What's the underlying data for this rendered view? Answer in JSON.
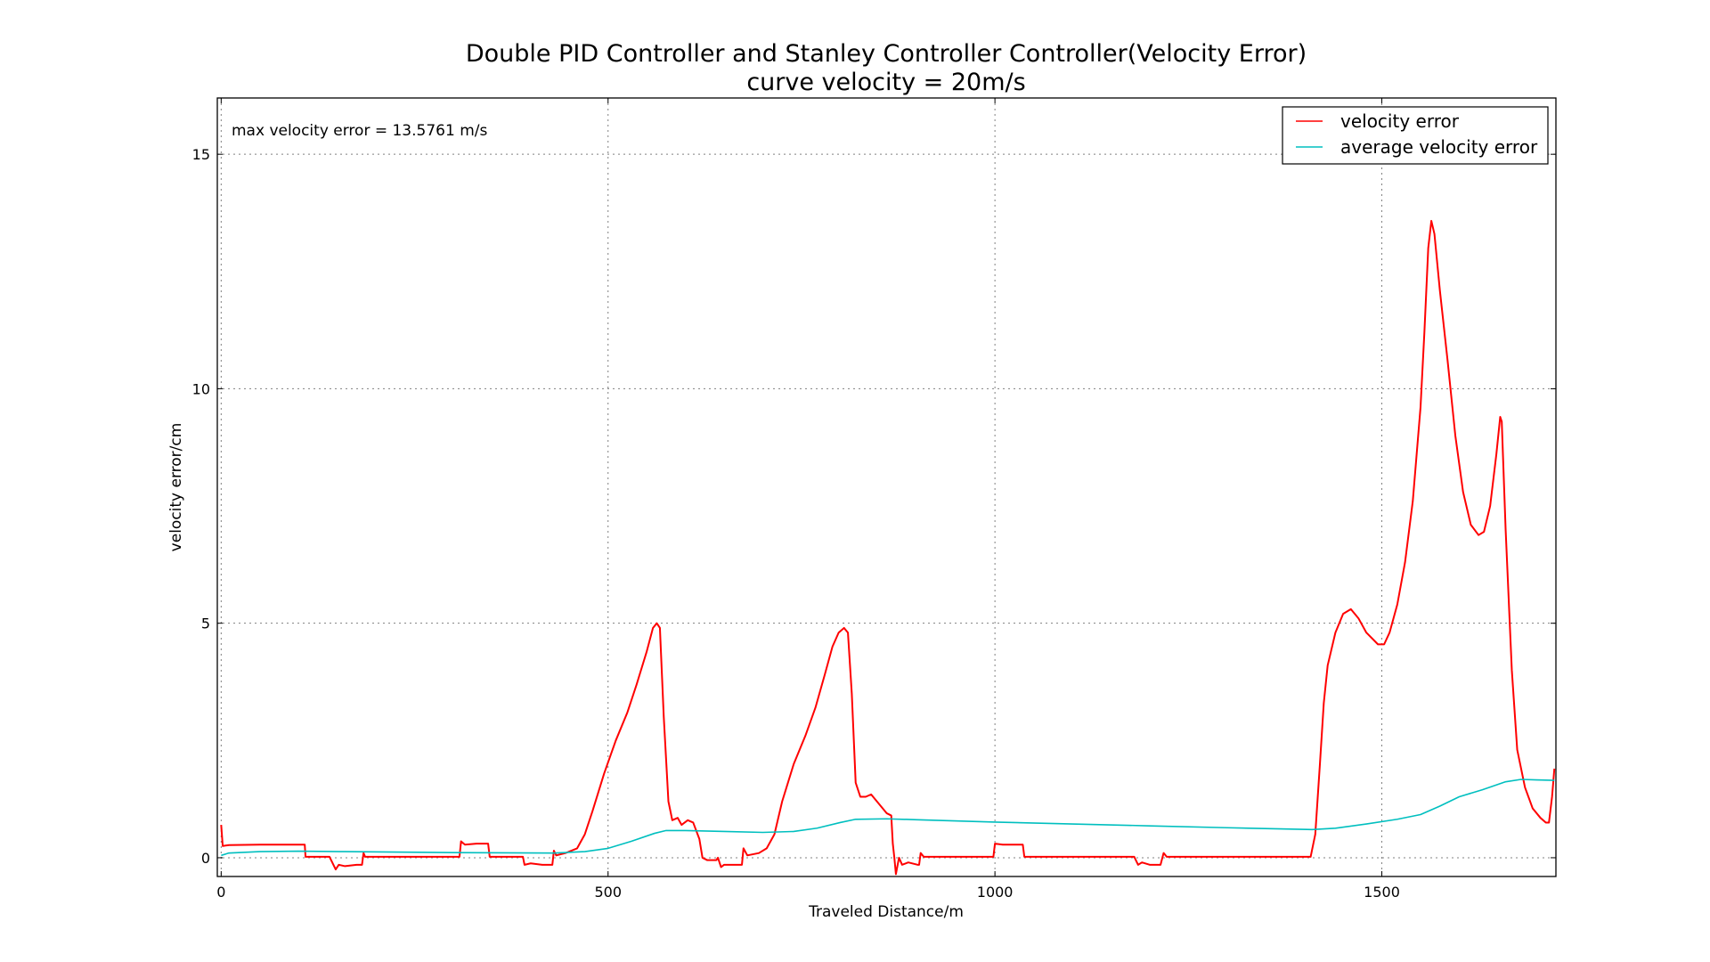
{
  "chart_data": {
    "type": "line",
    "title": "Double PID Controller and Stanley Controller Controller(Velocity Error)",
    "subtitle": "curve velocity = 20m/s",
    "xlabel": "Traveled Distance/m",
    "ylabel": "velocity error/cm",
    "xlim": [
      -5,
      1725
    ],
    "ylim": [
      -0.4,
      16.2
    ],
    "xticks": [
      0,
      500,
      1000,
      1500
    ],
    "yticks": [
      0,
      5,
      10,
      15
    ],
    "grid": true,
    "legend_position": "upper right",
    "annotation": "max velocity error = 13.5761 m/s",
    "series": [
      {
        "name": "velocity error",
        "color": "#ff0000",
        "points": [
          [
            0,
            0.7
          ],
          [
            2,
            0.25
          ],
          [
            10,
            0.27
          ],
          [
            50,
            0.28
          ],
          [
            100,
            0.28
          ],
          [
            108,
            0.28
          ],
          [
            109,
            0.02
          ],
          [
            140,
            0.02
          ],
          [
            148,
            -0.25
          ],
          [
            152,
            -0.15
          ],
          [
            160,
            -0.18
          ],
          [
            175,
            -0.15
          ],
          [
            182,
            -0.15
          ],
          [
            184,
            0.1
          ],
          [
            186,
            0.02
          ],
          [
            220,
            0.02
          ],
          [
            260,
            0.02
          ],
          [
            308,
            0.02
          ],
          [
            310,
            0.35
          ],
          [
            315,
            0.28
          ],
          [
            330,
            0.3
          ],
          [
            345,
            0.3
          ],
          [
            347,
            0.02
          ],
          [
            370,
            0.02
          ],
          [
            390,
            0.02
          ],
          [
            392,
            -0.15
          ],
          [
            400,
            -0.12
          ],
          [
            415,
            -0.15
          ],
          [
            428,
            -0.15
          ],
          [
            430,
            0.15
          ],
          [
            433,
            0.05
          ],
          [
            445,
            0.1
          ],
          [
            460,
            0.2
          ],
          [
            470,
            0.5
          ],
          [
            480,
            1.0
          ],
          [
            495,
            1.8
          ],
          [
            510,
            2.5
          ],
          [
            525,
            3.1
          ],
          [
            537,
            3.7
          ],
          [
            550,
            4.4
          ],
          [
            558,
            4.9
          ],
          [
            563,
            5.0
          ],
          [
            567,
            4.9
          ],
          [
            572,
            3.0
          ],
          [
            578,
            1.2
          ],
          [
            583,
            0.8
          ],
          [
            590,
            0.85
          ],
          [
            595,
            0.7
          ],
          [
            603,
            0.8
          ],
          [
            610,
            0.75
          ],
          [
            618,
            0.4
          ],
          [
            622,
            0.0
          ],
          [
            628,
            -0.05
          ],
          [
            640,
            -0.05
          ],
          [
            642,
            0.0
          ],
          [
            646,
            -0.2
          ],
          [
            650,
            -0.15
          ],
          [
            665,
            -0.15
          ],
          [
            673,
            -0.15
          ],
          [
            675,
            0.2
          ],
          [
            680,
            0.05
          ],
          [
            695,
            0.1
          ],
          [
            705,
            0.2
          ],
          [
            715,
            0.5
          ],
          [
            725,
            1.2
          ],
          [
            740,
            2.0
          ],
          [
            755,
            2.6
          ],
          [
            768,
            3.2
          ],
          [
            780,
            3.9
          ],
          [
            790,
            4.5
          ],
          [
            798,
            4.8
          ],
          [
            805,
            4.9
          ],
          [
            810,
            4.8
          ],
          [
            815,
            3.5
          ],
          [
            820,
            1.6
          ],
          [
            826,
            1.3
          ],
          [
            833,
            1.3
          ],
          [
            840,
            1.35
          ],
          [
            850,
            1.15
          ],
          [
            860,
            0.95
          ],
          [
            866,
            0.9
          ],
          [
            868,
            0.3
          ],
          [
            870,
            0.0
          ],
          [
            872,
            -0.35
          ],
          [
            876,
            0.0
          ],
          [
            880,
            -0.15
          ],
          [
            888,
            -0.1
          ],
          [
            900,
            -0.15
          ],
          [
            902,
            -0.15
          ],
          [
            904,
            0.1
          ],
          [
            908,
            0.02
          ],
          [
            950,
            0.02
          ],
          [
            998,
            0.02
          ],
          [
            1000,
            0.3
          ],
          [
            1010,
            0.28
          ],
          [
            1036,
            0.28
          ],
          [
            1038,
            0.02
          ],
          [
            1100,
            0.02
          ],
          [
            1180,
            0.02
          ],
          [
            1185,
            -0.15
          ],
          [
            1190,
            -0.1
          ],
          [
            1200,
            -0.15
          ],
          [
            1214,
            -0.15
          ],
          [
            1218,
            0.1
          ],
          [
            1222,
            0.02
          ],
          [
            1300,
            0.02
          ],
          [
            1400,
            0.02
          ],
          [
            1408,
            0.02
          ],
          [
            1414,
            0.5
          ],
          [
            1420,
            2.0
          ],
          [
            1425,
            3.3
          ],
          [
            1430,
            4.1
          ],
          [
            1440,
            4.8
          ],
          [
            1450,
            5.2
          ],
          [
            1460,
            5.3
          ],
          [
            1470,
            5.1
          ],
          [
            1480,
            4.8
          ],
          [
            1495,
            4.55
          ],
          [
            1503,
            4.55
          ],
          [
            1510,
            4.8
          ],
          [
            1520,
            5.4
          ],
          [
            1530,
            6.3
          ],
          [
            1540,
            7.6
          ],
          [
            1550,
            9.6
          ],
          [
            1555,
            11.2
          ],
          [
            1560,
            13.0
          ],
          [
            1564,
            13.58
          ],
          [
            1568,
            13.3
          ],
          [
            1575,
            12.1
          ],
          [
            1585,
            10.6
          ],
          [
            1595,
            9.0
          ],
          [
            1605,
            7.8
          ],
          [
            1615,
            7.1
          ],
          [
            1625,
            6.88
          ],
          [
            1632,
            6.95
          ],
          [
            1640,
            7.5
          ],
          [
            1648,
            8.6
          ],
          [
            1653,
            9.4
          ],
          [
            1655,
            9.3
          ],
          [
            1660,
            7.0
          ],
          [
            1668,
            4.0
          ],
          [
            1675,
            2.3
          ],
          [
            1685,
            1.5
          ],
          [
            1695,
            1.05
          ],
          [
            1705,
            0.85
          ],
          [
            1712,
            0.75
          ],
          [
            1716,
            0.75
          ],
          [
            1720,
            1.3
          ],
          [
            1723,
            1.9
          ]
        ]
      },
      {
        "name": "average velocity error",
        "color": "#00bfbf",
        "points": [
          [
            0,
            0.05
          ],
          [
            10,
            0.1
          ],
          [
            50,
            0.13
          ],
          [
            100,
            0.14
          ],
          [
            160,
            0.13
          ],
          [
            300,
            0.11
          ],
          [
            430,
            0.1
          ],
          [
            470,
            0.13
          ],
          [
            500,
            0.2
          ],
          [
            530,
            0.35
          ],
          [
            560,
            0.52
          ],
          [
            575,
            0.58
          ],
          [
            600,
            0.58
          ],
          [
            650,
            0.56
          ],
          [
            700,
            0.54
          ],
          [
            740,
            0.56
          ],
          [
            770,
            0.63
          ],
          [
            800,
            0.75
          ],
          [
            820,
            0.82
          ],
          [
            860,
            0.83
          ],
          [
            900,
            0.81
          ],
          [
            1000,
            0.76
          ],
          [
            1100,
            0.72
          ],
          [
            1200,
            0.68
          ],
          [
            1300,
            0.64
          ],
          [
            1410,
            0.6
          ],
          [
            1440,
            0.63
          ],
          [
            1480,
            0.72
          ],
          [
            1520,
            0.82
          ],
          [
            1550,
            0.92
          ],
          [
            1575,
            1.1
          ],
          [
            1600,
            1.3
          ],
          [
            1630,
            1.45
          ],
          [
            1660,
            1.62
          ],
          [
            1680,
            1.67
          ],
          [
            1700,
            1.66
          ],
          [
            1723,
            1.65
          ]
        ]
      }
    ]
  }
}
